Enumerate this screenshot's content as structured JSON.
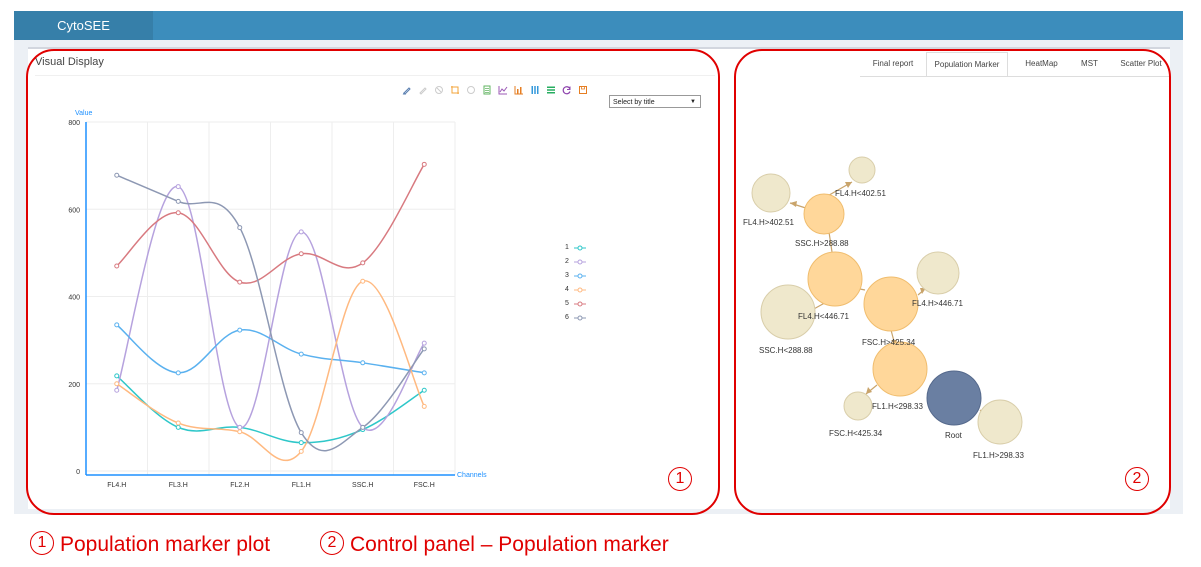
{
  "app": {
    "brand": "CytoSEE"
  },
  "panel": {
    "title": "Visual Display"
  },
  "tabs": [
    "Final report",
    "Population Marker",
    "HeatMap",
    "MST",
    "Scatter Plot"
  ],
  "active_tab": "Population Marker",
  "toolbox_icons": [
    "mark-icon",
    "mark-undo-icon",
    "mark-clear-icon",
    "zoom-icon",
    "zoom-reset-icon",
    "data-view-icon",
    "line-chart-icon",
    "bar-chart-icon",
    "stack-icon",
    "tiled-icon",
    "restore-icon",
    "save-image-icon"
  ],
  "select": {
    "value": "Select by title"
  },
  "chart_data": {
    "type": "line",
    "ylabel": "Value",
    "xlabel": "Channels",
    "categories": [
      "FL4.H",
      "FL3.H",
      "FL2.H",
      "FL1.H",
      "SSC.H",
      "FSC.H"
    ],
    "ylim": [
      0,
      800
    ],
    "yticks": [
      "0",
      "200",
      "400",
      "600",
      "800"
    ],
    "grid": true,
    "smooth": true,
    "legend_position": "right",
    "series": [
      {
        "name": "1",
        "color": "#2ec7c9",
        "values": [
          218,
          100,
          100,
          65,
          95,
          185
        ]
      },
      {
        "name": "2",
        "color": "#b6a2de",
        "values": [
          185,
          652,
          100,
          548,
          100,
          293
        ]
      },
      {
        "name": "3",
        "color": "#5ab1ef",
        "values": [
          335,
          225,
          323,
          268,
          248,
          225
        ]
      },
      {
        "name": "4",
        "color": "#ffb980",
        "values": [
          200,
          110,
          90,
          45,
          435,
          148
        ]
      },
      {
        "name": "5",
        "color": "#d87a80",
        "values": [
          470,
          592,
          433,
          498,
          477,
          703
        ]
      },
      {
        "name": "6",
        "color": "#8d98b3",
        "values": [
          678,
          618,
          558,
          88,
          100,
          280
        ]
      }
    ]
  },
  "graph": {
    "nodes": [
      {
        "id": "n1",
        "label": "FL4.H<402.51"
      },
      {
        "id": "n2",
        "label": "FL4.H>402.51"
      },
      {
        "id": "n3",
        "label": "SSC.H>288.88"
      },
      {
        "id": "n4",
        "label": "FL4.H<446.71"
      },
      {
        "id": "n5",
        "label": "FL4.H>446.71"
      },
      {
        "id": "n6",
        "label": "SSC.H<288.88"
      },
      {
        "id": "n7",
        "label": "FSC.H>425.34"
      },
      {
        "id": "n8",
        "label": "FL1.H<298.33"
      },
      {
        "id": "n9",
        "label": "FSC.H<425.34"
      },
      {
        "id": "n10",
        "label": "Root"
      },
      {
        "id": "n11",
        "label": "FL1.H>298.33"
      }
    ]
  },
  "captions": {
    "c1_num": "1",
    "c1_text": "Population marker plot",
    "c2_num": "2",
    "c2_text": "Control panel – Population marker"
  },
  "colors": {
    "accent": "#3c8dbc",
    "annotation": "#e00000",
    "node_light": "#efe8cc",
    "node_orange": "#ffd79a",
    "node_root": "#6a7fa2"
  }
}
